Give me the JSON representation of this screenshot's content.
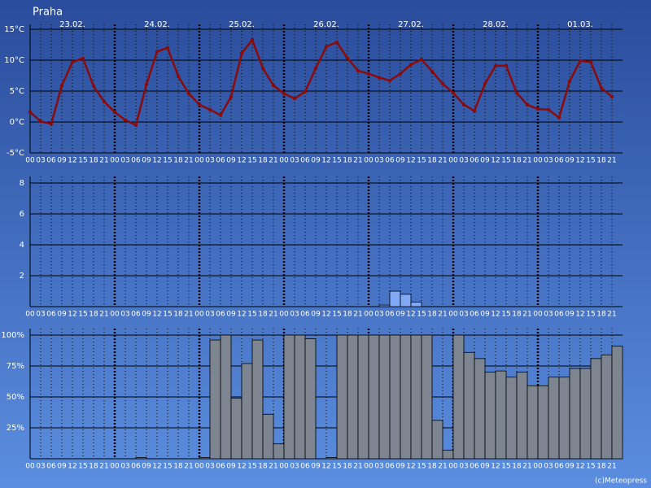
{
  "credit": "(c)Meteopress",
  "chart_data": [
    {
      "type": "line",
      "title": "Praha",
      "day_labels": [
        "23.02.",
        "24.02.",
        "25.02.",
        "26.02.",
        "27.02.",
        "28.02.",
        "01.03."
      ],
      "categories": [
        "00",
        "03",
        "06",
        "09",
        "12",
        "15",
        "18",
        "21",
        "00",
        "03",
        "06",
        "09",
        "12",
        "15",
        "18",
        "21",
        "00",
        "03",
        "06",
        "09",
        "12",
        "15",
        "18",
        "21",
        "00",
        "03",
        "06",
        "09",
        "12",
        "15",
        "18",
        "21",
        "00",
        "03",
        "06",
        "09",
        "12",
        "15",
        "18",
        "21",
        "00",
        "03",
        "06",
        "09",
        "12",
        "15",
        "18",
        "21",
        "00",
        "03",
        "06",
        "09",
        "12",
        "15",
        "18",
        "21"
      ],
      "values": [
        1.6,
        0.1,
        -0.3,
        5.9,
        9.7,
        10.3,
        5.8,
        3.3,
        1.6,
        0.3,
        -0.5,
        6.1,
        11.4,
        12.0,
        7.4,
        4.6,
        2.8,
        2.0,
        1.1,
        4.1,
        11.1,
        13.3,
        8.7,
        5.9,
        4.6,
        3.8,
        4.9,
        8.7,
        12.2,
        12.9,
        10.3,
        8.3,
        7.8,
        7.2,
        6.7,
        7.8,
        9.3,
        10.1,
        8.2,
        6.2,
        4.7,
        2.8,
        1.8,
        6.2,
        9.1,
        9.1,
        4.7,
        2.8,
        2.1,
        2.0,
        0.7,
        6.6,
        9.9,
        9.7,
        5.5,
        4.1
      ],
      "color": "#8b0a0a",
      "ylim": [
        -5,
        15
      ],
      "yticks": [
        {
          "value": -5,
          "label": "-5°C"
        },
        {
          "value": 0,
          "label": "0°C"
        },
        {
          "value": 5,
          "label": "5°C"
        },
        {
          "value": 10,
          "label": "10°C"
        },
        {
          "value": 15,
          "label": "15°C"
        }
      ],
      "grid": true
    },
    {
      "type": "bar",
      "categories": [
        "00",
        "03",
        "06",
        "09",
        "12",
        "15",
        "18",
        "21",
        "00",
        "03",
        "06",
        "09",
        "12",
        "15",
        "18",
        "21",
        "00",
        "03",
        "06",
        "09",
        "12",
        "15",
        "18",
        "21",
        "00",
        "03",
        "06",
        "09",
        "12",
        "15",
        "18",
        "21",
        "00",
        "03",
        "06",
        "09",
        "12",
        "15",
        "18",
        "21",
        "00",
        "03",
        "06",
        "09",
        "12",
        "15",
        "18",
        "21",
        "00",
        "03",
        "06",
        "09",
        "12",
        "15",
        "18",
        "21"
      ],
      "values": [
        0,
        0,
        0,
        0,
        0,
        0,
        0,
        0,
        0,
        0,
        0,
        0,
        0,
        0,
        0,
        0,
        0,
        0,
        0,
        0,
        0,
        0,
        0,
        0,
        0,
        0,
        0,
        0,
        0,
        0,
        0,
        0,
        0,
        0.1,
        1.0,
        0.8,
        0.3,
        0,
        0,
        0,
        0,
        0,
        0,
        0,
        0,
        0,
        0,
        0,
        0,
        0,
        0,
        0,
        0,
        0,
        0,
        0
      ],
      "color": "#7fa8f5",
      "ylim": [
        0,
        8
      ],
      "yticks": [
        2,
        4,
        6,
        8
      ],
      "grid": true
    },
    {
      "type": "bar",
      "categories": [
        "00",
        "03",
        "06",
        "09",
        "12",
        "15",
        "18",
        "21",
        "00",
        "03",
        "06",
        "09",
        "12",
        "15",
        "18",
        "21",
        "00",
        "03",
        "06",
        "09",
        "12",
        "15",
        "18",
        "21",
        "00",
        "03",
        "06",
        "09",
        "12",
        "15",
        "18",
        "21",
        "00",
        "03",
        "06",
        "09",
        "12",
        "15",
        "18",
        "21",
        "00",
        "03",
        "06",
        "09",
        "12",
        "15",
        "18",
        "21",
        "00",
        "03",
        "06",
        "09",
        "12",
        "15",
        "18",
        "21"
      ],
      "values": [
        0,
        0,
        0,
        0,
        0,
        0,
        0,
        0,
        0,
        0,
        1,
        0,
        0,
        0,
        0,
        0,
        1,
        96,
        100,
        49,
        77,
        96,
        36,
        12,
        100,
        100,
        97,
        0,
        1,
        100,
        100,
        100,
        100,
        100,
        100,
        100,
        100,
        100,
        31,
        7,
        100,
        86,
        81,
        70,
        71,
        66,
        70,
        59,
        59,
        66,
        66,
        73,
        73,
        81,
        84,
        91
      ],
      "color": "#7d8690",
      "ylim": [
        0,
        100
      ],
      "yticks": [
        {
          "value": 25,
          "label": "25%"
        },
        {
          "value": 50,
          "label": "50%"
        },
        {
          "value": 75,
          "label": "75%"
        },
        {
          "value": 100,
          "label": "100%"
        }
      ],
      "grid": true
    }
  ]
}
